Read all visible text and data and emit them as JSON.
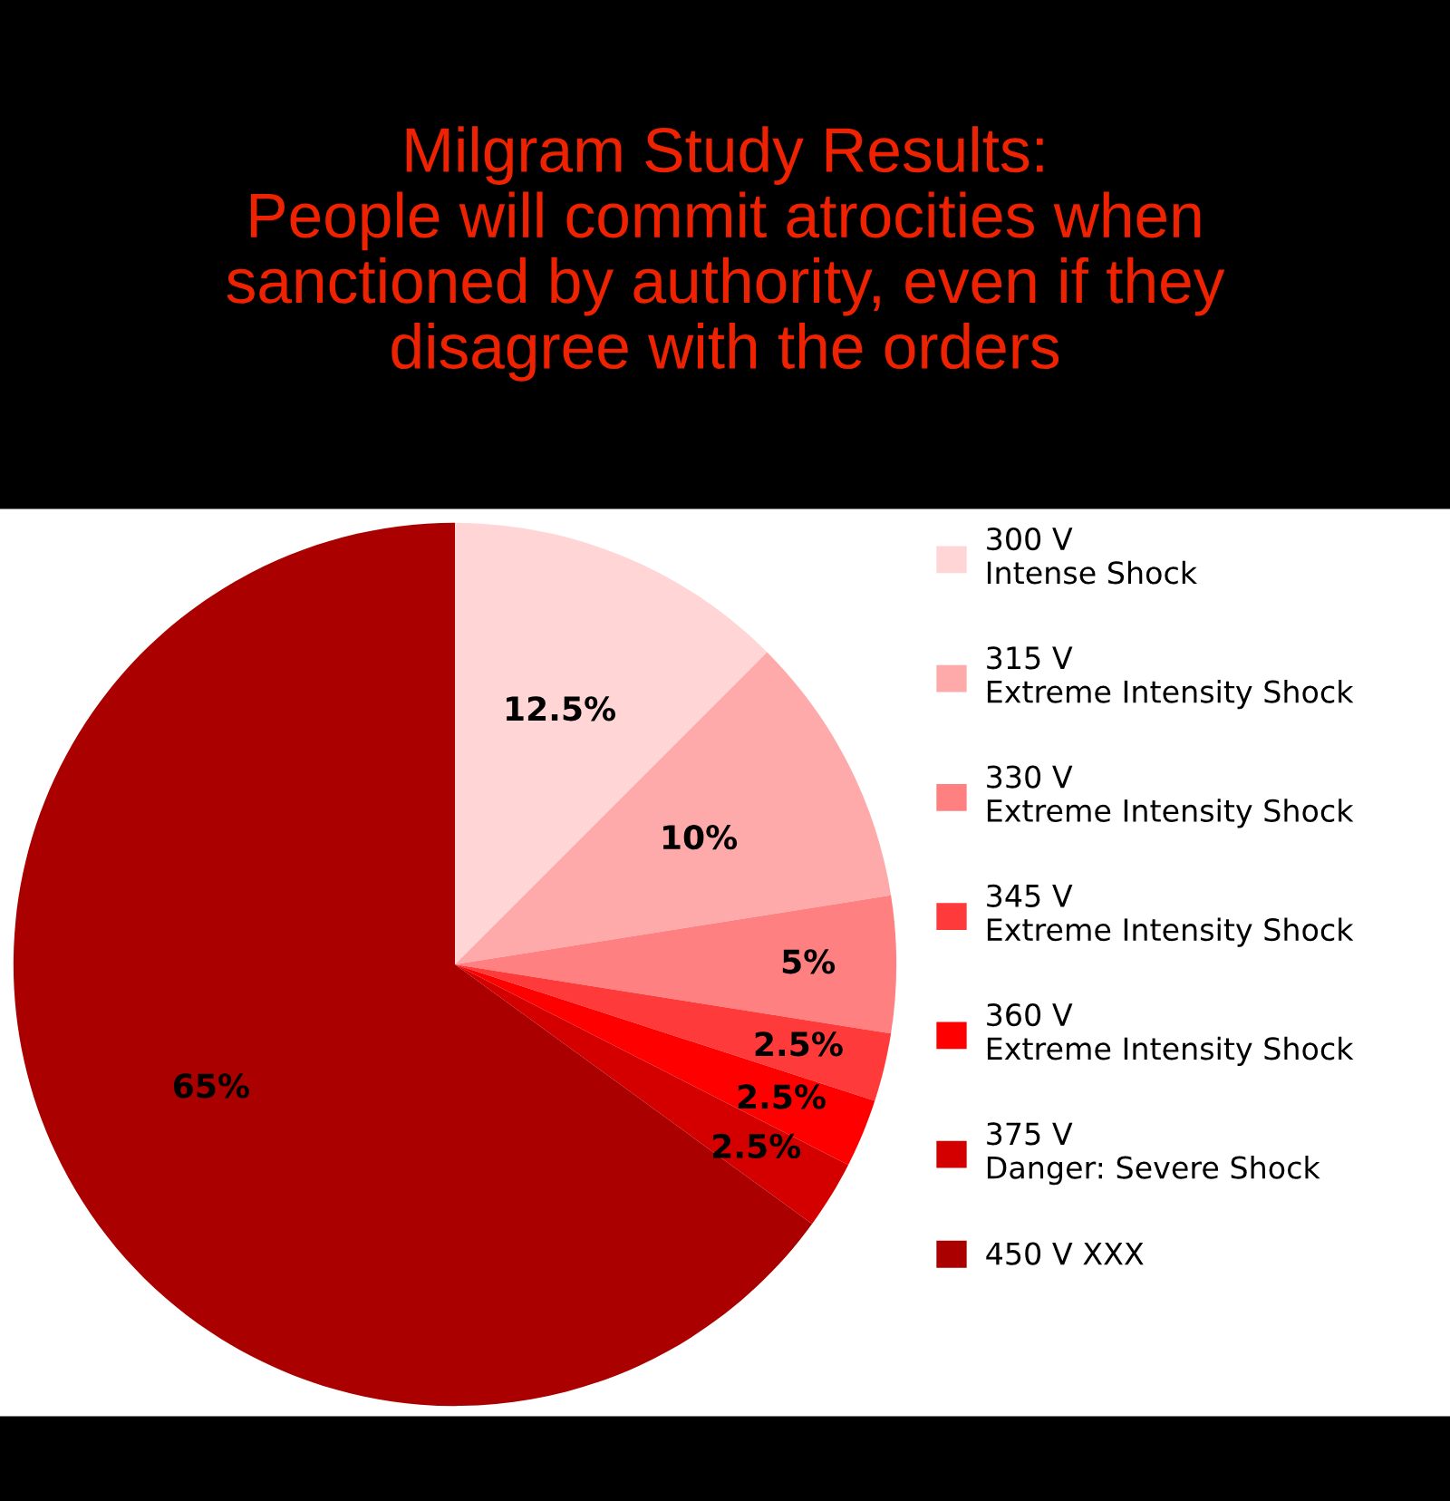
{
  "chart_data": {
    "type": "pie",
    "title": "Milgram Study Results:\nPeople will commit atrocities when\nsanctioned by authority, even if they\ndisagree with the orders",
    "categories": [
      "300 V\nIntense Shock",
      "315 V\nExtreme Intensity Shock",
      "330 V\nExtreme Intensity Shock",
      "345 V\nExtreme Intensity Shock",
      "360 V\nExtreme Intensity Shock",
      "375 V\nDanger: Severe Shock",
      "450 V XXX"
    ],
    "values": [
      12.5,
      10,
      5,
      2.5,
      2.5,
      2.5,
      65
    ],
    "value_labels": [
      "12.5%",
      "10%",
      "5%",
      "2.5%",
      "2.5%",
      "2.5%",
      "65%"
    ],
    "colors": [
      "#ffd5d5",
      "#ffaaaa",
      "#ff8080",
      "#ff3a3a",
      "#ff0000",
      "#d40000",
      "#aa0000"
    ],
    "legend": "right"
  }
}
